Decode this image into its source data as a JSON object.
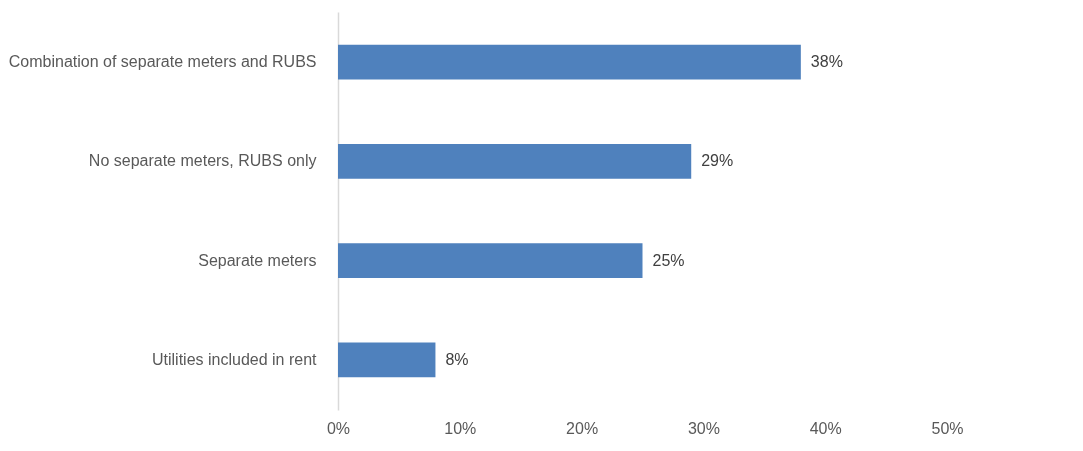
{
  "chart_data": {
    "type": "bar",
    "orientation": "horizontal",
    "categories": [
      "Combination of separate meters and RUBS",
      "No separate meters, RUBS only",
      "Separate meters",
      "Utilities included in rent"
    ],
    "series": [
      {
        "color": "#4f81bd",
        "values": [
          38,
          29,
          25,
          8
        ],
        "value_labels": [
          "38%",
          "29%",
          "25%",
          "8%"
        ]
      }
    ],
    "xlim": [
      0,
      50
    ],
    "xticks": [
      {
        "value": 0,
        "label": "0%"
      },
      {
        "value": 10,
        "label": "10%"
      },
      {
        "value": 20,
        "label": "20%"
      },
      {
        "value": 30,
        "label": "30%"
      },
      {
        "value": 40,
        "label": "40%"
      },
      {
        "value": 50,
        "label": "50%"
      }
    ],
    "grid": false
  }
}
